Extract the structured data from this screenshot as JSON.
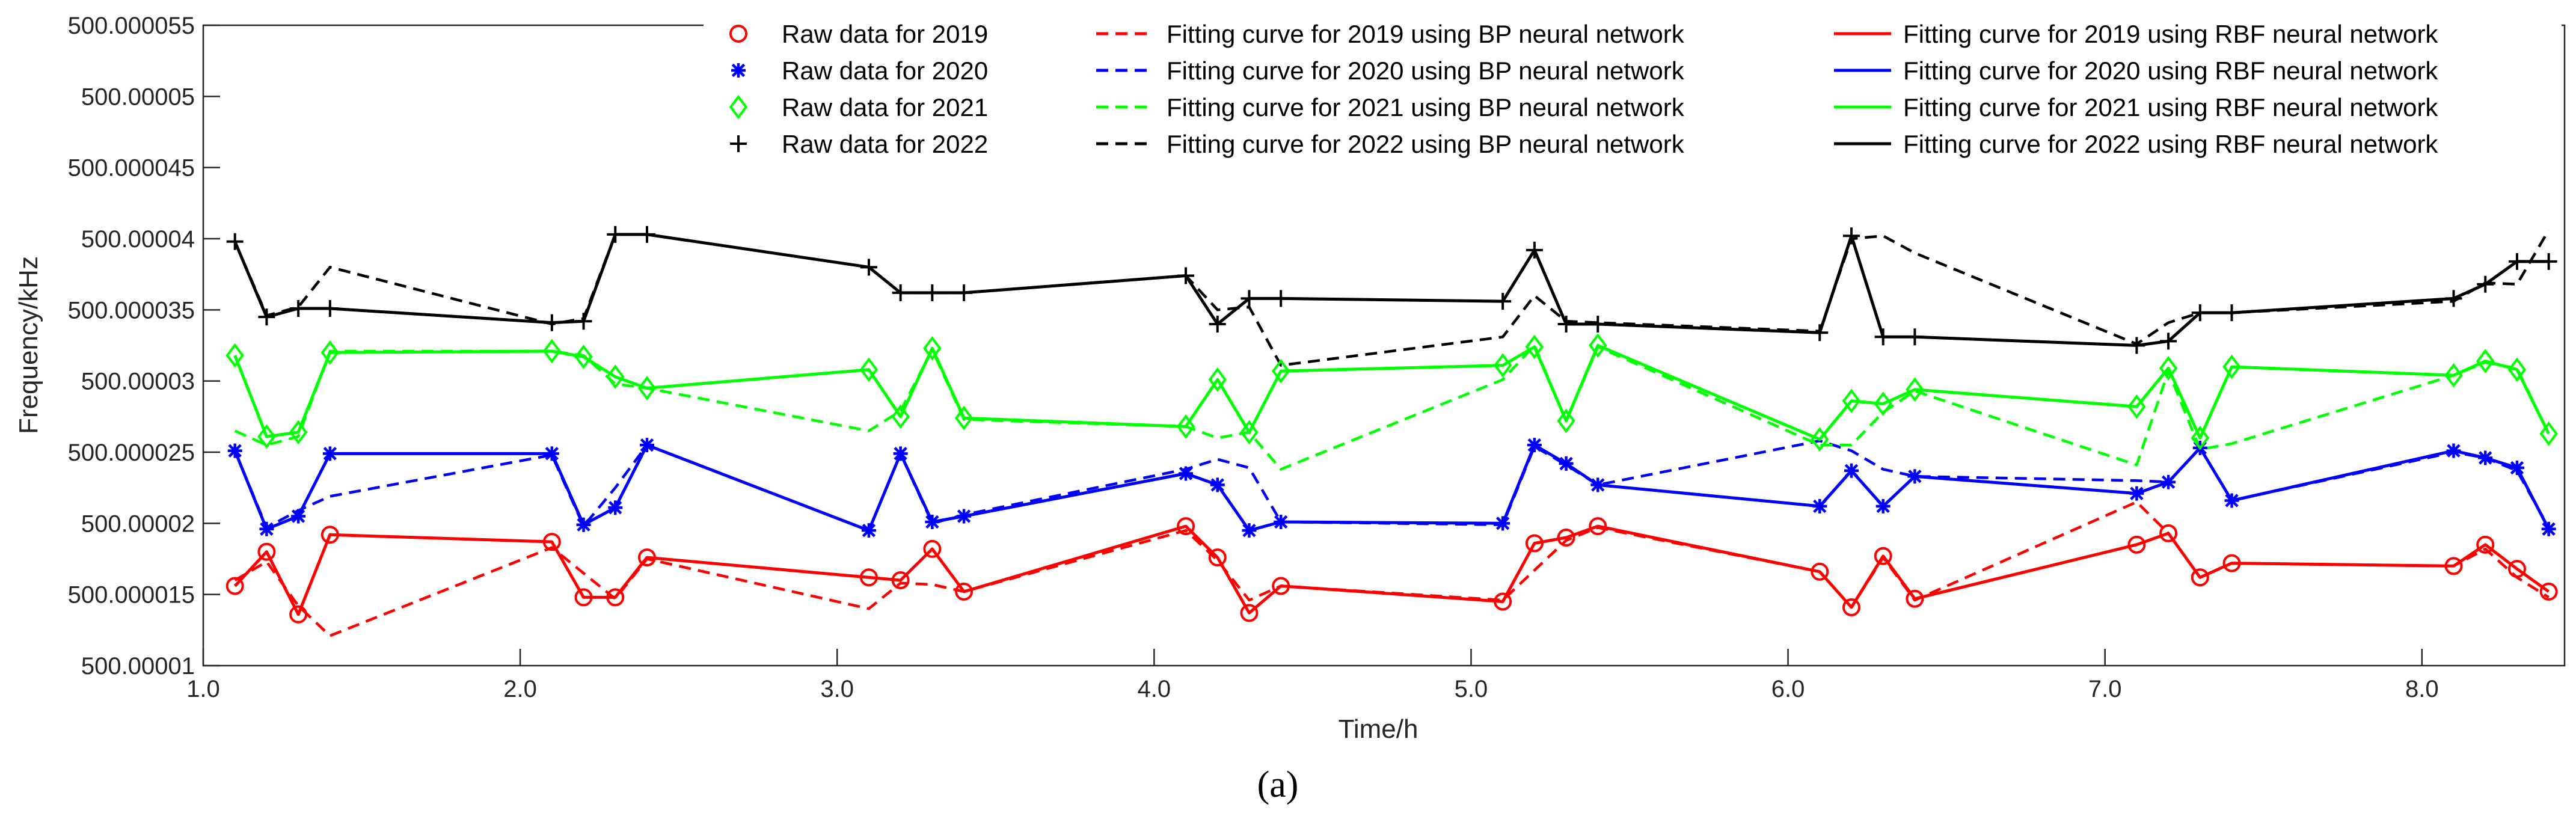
{
  "chart_data": {
    "type": "line",
    "title": "",
    "xlabel": "Time/h",
    "ylabel": "Frequency/kHz",
    "panel_label": "(a)",
    "xlim": [
      1.0,
      8.45
    ],
    "ylim": [
      500.00001,
      500.000055
    ],
    "grid": false,
    "legend_position": "top",
    "x_ticks": [
      1.0,
      2.0,
      3.0,
      4.0,
      5.0,
      6.0,
      7.0,
      8.0
    ],
    "x_tick_labels": [
      "1.0",
      "2.0",
      "3.0",
      "4.0",
      "5.0",
      "6.0",
      "7.0",
      "8.0"
    ],
    "y_ticks": [
      500.00001,
      500.000015,
      500.00002,
      500.000025,
      500.00003,
      500.000035,
      500.00004,
      500.000045,
      500.00005,
      500.000055
    ],
    "y_tick_labels": [
      "500.00001",
      "500.000015",
      "500.00002",
      "500.000025",
      "500.00003",
      "500.000035",
      "500.00004",
      "500.000045",
      "500.00005",
      "500.000055"
    ],
    "x": [
      1.1,
      1.2,
      1.3,
      1.4,
      2.1,
      2.2,
      2.3,
      2.4,
      3.1,
      3.2,
      3.3,
      3.4,
      4.1,
      4.2,
      4.3,
      4.4,
      5.1,
      5.2,
      5.3,
      5.4,
      6.1,
      6.2,
      6.3,
      6.4,
      7.1,
      7.2,
      7.3,
      7.4,
      8.1,
      8.2,
      8.3,
      8.4
    ],
    "series": [
      {
        "name": "Raw data for 2019",
        "kind": "raw",
        "marker": "circle",
        "color": "#ff0000",
        "values": [
          500.0000156,
          500.000018,
          500.0000136,
          500.0000192,
          500.0000187,
          500.0000148,
          500.0000148,
          500.0000176,
          500.0000162,
          500.000016,
          500.0000182,
          500.0000152,
          500.0000198,
          500.0000176,
          500.0000137,
          500.0000156,
          500.0000145,
          500.0000186,
          500.000019,
          500.0000198,
          500.0000166,
          500.0000141,
          500.0000177,
          500.0000147,
          500.0000185,
          500.0000193,
          500.0000162,
          500.0000172,
          500.000017,
          500.0000185,
          500.0000168,
          500.0000152
        ]
      },
      {
        "name": "Raw data for 2020",
        "kind": "raw",
        "marker": "asterisk",
        "color": "#0000ff",
        "values": [
          500.0000251,
          500.0000196,
          500.0000205,
          500.0000249,
          500.0000249,
          500.0000199,
          500.0000211,
          500.0000255,
          500.0000195,
          500.0000249,
          500.0000201,
          500.0000205,
          500.0000235,
          500.0000227,
          500.0000195,
          500.0000201,
          500.00002,
          500.0000255,
          500.0000242,
          500.0000227,
          500.0000212,
          500.0000237,
          500.0000212,
          500.0000233,
          500.0000221,
          500.0000229,
          500.0000253,
          500.0000216,
          500.0000251,
          500.0000246,
          500.0000239,
          500.0000196
        ]
      },
      {
        "name": "Raw data for 2021",
        "kind": "raw",
        "marker": "diamond",
        "color": "#00ff00",
        "values": [
          500.0000318,
          500.0000261,
          500.0000264,
          500.000032,
          500.0000321,
          500.0000317,
          500.0000303,
          500.0000295,
          500.0000308,
          500.0000275,
          500.0000323,
          500.0000274,
          500.0000268,
          500.0000301,
          500.0000264,
          500.0000307,
          500.0000311,
          500.0000324,
          500.0000272,
          500.0000325,
          500.0000259,
          500.0000286,
          500.0000284,
          500.0000294,
          500.0000282,
          500.0000309,
          500.000026,
          500.000031,
          500.0000304,
          500.0000314,
          500.0000308,
          500.0000263
        ]
      },
      {
        "name": "Raw data for 2022",
        "kind": "raw",
        "marker": "plus",
        "color": "#000000",
        "values": [
          500.0000398,
          500.0000345,
          500.0000351,
          500.0000351,
          500.0000341,
          500.0000342,
          500.0000403,
          500.0000403,
          500.000038,
          500.0000362,
          500.0000362,
          500.0000362,
          500.0000374,
          500.000034,
          500.0000358,
          500.0000358,
          500.0000356,
          500.0000392,
          500.000034,
          500.000034,
          500.0000334,
          500.0000402,
          500.0000331,
          500.0000331,
          500.0000325,
          500.0000328,
          500.0000348,
          500.0000348,
          500.0000358,
          500.0000368,
          500.0000384,
          500.0000384
        ]
      },
      {
        "name": "Fitting curve for 2019 using BP neural network",
        "kind": "bp",
        "color": "#ff0000",
        "values": [
          500.000016,
          500.0000173,
          500.0000142,
          500.0000121,
          500.0000183,
          500.0000165,
          500.0000147,
          500.0000175,
          500.000014,
          500.0000158,
          500.0000157,
          500.0000152,
          500.0000195,
          500.0000174,
          500.0000146,
          500.0000156,
          500.0000146,
          500.0000167,
          500.0000188,
          500.0000197,
          500.0000166,
          500.0000141,
          500.0000176,
          500.0000146,
          500.0000215,
          500.0000193,
          500.0000162,
          500.0000172,
          500.000017,
          500.0000182,
          500.0000162,
          500.0000148
        ]
      },
      {
        "name": "Fitting curve for 2020 using BP neural network",
        "kind": "bp",
        "color": "#0000ff",
        "values": [
          500.0000251,
          500.0000197,
          500.0000209,
          500.0000219,
          500.0000248,
          500.0000198,
          500.0000225,
          500.0000255,
          500.0000195,
          500.0000249,
          500.00002,
          500.0000206,
          500.0000238,
          500.0000245,
          500.0000239,
          500.0000201,
          500.0000199,
          500.0000254,
          500.0000241,
          500.0000227,
          500.0000258,
          500.0000251,
          500.0000238,
          500.0000233,
          500.000023,
          500.0000229,
          500.0000253,
          500.0000216,
          500.000025,
          500.0000246,
          500.0000237,
          500.0000197
        ]
      },
      {
        "name": "Fitting curve for 2021 using BP neural network",
        "kind": "bp",
        "color": "#00ff00",
        "values": [
          500.0000265,
          500.0000255,
          500.0000261,
          500.0000321,
          500.0000321,
          500.0000318,
          500.0000298,
          500.0000295,
          500.0000265,
          500.0000279,
          500.0000322,
          500.0000273,
          500.0000268,
          500.000026,
          500.0000264,
          500.0000238,
          500.0000301,
          500.0000325,
          500.0000272,
          500.0000324,
          500.0000255,
          500.0000255,
          500.0000278,
          500.0000293,
          500.0000241,
          500.0000307,
          500.0000252,
          500.0000256,
          500.0000304,
          500.0000313,
          500.0000309,
          500.0000263
        ]
      },
      {
        "name": "Fitting curve for 2022 using BP neural network",
        "kind": "bp",
        "color": "#000000",
        "values": [
          500.0000398,
          500.0000346,
          500.0000352,
          500.000038,
          500.000034,
          500.0000344,
          500.0000403,
          500.0000403,
          500.000038,
          500.0000362,
          500.0000362,
          500.0000362,
          500.0000374,
          500.000035,
          500.0000352,
          500.0000311,
          500.0000331,
          500.000036,
          500.0000342,
          500.0000341,
          500.0000335,
          500.00004,
          500.0000402,
          500.000039,
          500.0000326,
          500.0000341,
          500.0000348,
          500.0000348,
          500.0000356,
          500.0000369,
          500.0000368,
          500.0000406
        ]
      },
      {
        "name": "Fitting curve for 2019 using RBF neural network",
        "kind": "rbf",
        "color": "#ff0000",
        "values": [
          500.0000156,
          500.000018,
          500.0000136,
          500.0000192,
          500.0000187,
          500.0000148,
          500.0000148,
          500.0000176,
          500.0000162,
          500.000016,
          500.0000182,
          500.0000152,
          500.0000198,
          500.0000176,
          500.0000137,
          500.0000156,
          500.0000145,
          500.0000186,
          500.000019,
          500.0000198,
          500.0000166,
          500.0000141,
          500.0000177,
          500.0000147,
          500.0000185,
          500.0000193,
          500.0000162,
          500.0000172,
          500.000017,
          500.0000185,
          500.0000168,
          500.0000152
        ]
      },
      {
        "name": "Fitting curve for 2020 using RBF neural network",
        "kind": "rbf",
        "color": "#0000ff",
        "values": [
          500.0000251,
          500.0000196,
          500.0000205,
          500.0000249,
          500.0000249,
          500.0000199,
          500.0000211,
          500.0000255,
          500.0000195,
          500.0000249,
          500.0000201,
          500.0000205,
          500.0000235,
          500.0000227,
          500.0000195,
          500.0000201,
          500.00002,
          500.0000255,
          500.0000242,
          500.0000227,
          500.0000212,
          500.0000237,
          500.0000212,
          500.0000233,
          500.0000221,
          500.0000229,
          500.0000253,
          500.0000216,
          500.0000251,
          500.0000246,
          500.0000239,
          500.0000196
        ]
      },
      {
        "name": "Fitting curve for 2021 using RBF neural network",
        "kind": "rbf",
        "color": "#00ff00",
        "values": [
          500.0000318,
          500.0000261,
          500.0000264,
          500.000032,
          500.0000321,
          500.0000317,
          500.0000303,
          500.0000295,
          500.0000308,
          500.0000275,
          500.0000323,
          500.0000274,
          500.0000268,
          500.0000301,
          500.0000264,
          500.0000307,
          500.0000311,
          500.0000324,
          500.0000272,
          500.0000325,
          500.0000259,
          500.0000286,
          500.0000284,
          500.0000294,
          500.0000282,
          500.0000309,
          500.000026,
          500.000031,
          500.0000304,
          500.0000314,
          500.0000308,
          500.0000263
        ]
      },
      {
        "name": "Fitting curve for 2022 using RBF neural network",
        "kind": "rbf",
        "color": "#000000",
        "values": [
          500.0000398,
          500.0000345,
          500.0000351,
          500.0000351,
          500.0000341,
          500.0000342,
          500.0000403,
          500.0000403,
          500.000038,
          500.0000362,
          500.0000362,
          500.0000362,
          500.0000374,
          500.000034,
          500.0000358,
          500.0000358,
          500.0000356,
          500.0000392,
          500.000034,
          500.000034,
          500.0000334,
          500.0000402,
          500.0000331,
          500.0000331,
          500.0000325,
          500.0000328,
          500.0000348,
          500.0000348,
          500.0000358,
          500.0000368,
          500.0000384,
          500.0000384
        ]
      }
    ]
  }
}
